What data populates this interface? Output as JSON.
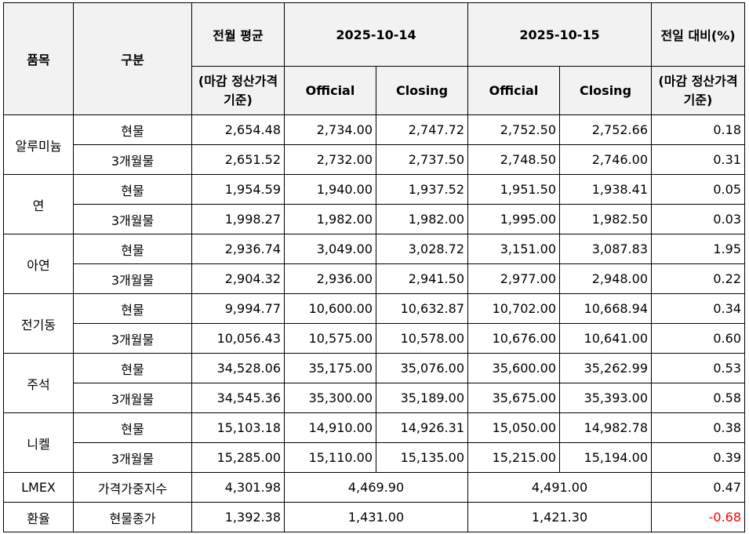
{
  "header": {
    "item": "품목",
    "category": "구분",
    "prev_month_avg": "전월 평균",
    "prev_month_avg_sub": "(마감 정산가격 기준)",
    "date1": "2025-10-14",
    "date2": "2025-10-15",
    "official": "Official",
    "closing": "Closing",
    "daily_change": "전일 대비(%)",
    "daily_change_sub": "(마감 정산가격 기준)"
  },
  "rows": [
    {
      "item": "알루미늄",
      "category": "현물",
      "avg": "2,654.48",
      "d1_official": "2,734.00",
      "d1_closing": "2,747.72",
      "d2_official": "2,752.50",
      "d2_closing": "2,752.66",
      "change": "0.18"
    },
    {
      "item": "알루미늄",
      "category": "3개월물",
      "avg": "2,651.52",
      "d1_official": "2,732.00",
      "d1_closing": "2,737.50",
      "d2_official": "2,748.50",
      "d2_closing": "2,746.00",
      "change": "0.31"
    },
    {
      "item": "연",
      "category": "현물",
      "avg": "1,954.59",
      "d1_official": "1,940.00",
      "d1_closing": "1,937.52",
      "d2_official": "1,951.50",
      "d2_closing": "1,938.41",
      "change": "0.05"
    },
    {
      "item": "연",
      "category": "3개월물",
      "avg": "1,998.27",
      "d1_official": "1,982.00",
      "d1_closing": "1,982.00",
      "d2_official": "1,995.00",
      "d2_closing": "1,982.50",
      "change": "0.03"
    },
    {
      "item": "아연",
      "category": "현물",
      "avg": "2,936.74",
      "d1_official": "3,049.00",
      "d1_closing": "3,028.72",
      "d2_official": "3,151.00",
      "d2_closing": "3,087.83",
      "change": "1.95"
    },
    {
      "item": "아연",
      "category": "3개월물",
      "avg": "2,904.32",
      "d1_official": "2,936.00",
      "d1_closing": "2,941.50",
      "d2_official": "2,977.00",
      "d2_closing": "2,948.00",
      "change": "0.22"
    },
    {
      "item": "전기동",
      "category": "현물",
      "avg": "9,994.77",
      "d1_official": "10,600.00",
      "d1_closing": "10,632.87",
      "d2_official": "10,702.00",
      "d2_closing": "10,668.94",
      "change": "0.34"
    },
    {
      "item": "전기동",
      "category": "3개월물",
      "avg": "10,056.43",
      "d1_official": "10,575.00",
      "d1_closing": "10,578.00",
      "d2_official": "10,676.00",
      "d2_closing": "10,641.00",
      "change": "0.60"
    },
    {
      "item": "주석",
      "category": "현물",
      "avg": "34,528.06",
      "d1_official": "35,175.00",
      "d1_closing": "35,076.00",
      "d2_official": "35,600.00",
      "d2_closing": "35,262.99",
      "change": "0.53"
    },
    {
      "item": "주석",
      "category": "3개월물",
      "avg": "34,545.36",
      "d1_official": "35,300.00",
      "d1_closing": "35,189.00",
      "d2_official": "35,675.00",
      "d2_closing": "35,393.00",
      "change": "0.58"
    },
    {
      "item": "니켈",
      "category": "현물",
      "avg": "15,103.18",
      "d1_official": "14,910.00",
      "d1_closing": "14,926.31",
      "d2_official": "15,050.00",
      "d2_closing": "14,982.78",
      "change": "0.38"
    },
    {
      "item": "니켈",
      "category": "3개월물",
      "avg": "15,285.00",
      "d1_official": "15,110.00",
      "d1_closing": "15,135.00",
      "d2_official": "15,215.00",
      "d2_closing": "15,194.00",
      "change": "0.39"
    }
  ],
  "lmex": {
    "item": "LMEX",
    "category": "가격가중지수",
    "avg": "4,301.98",
    "d1": "4,469.90",
    "d2": "4,491.00",
    "change": "0.47"
  },
  "fx": {
    "item": "환율",
    "category": "현물종가",
    "avg": "1,392.38",
    "d1": "1,431.00",
    "d2": "1,421.30",
    "change": "-0.68"
  },
  "colors": {
    "header_bg": "#f2f2f2",
    "negative": "#ff0000"
  }
}
